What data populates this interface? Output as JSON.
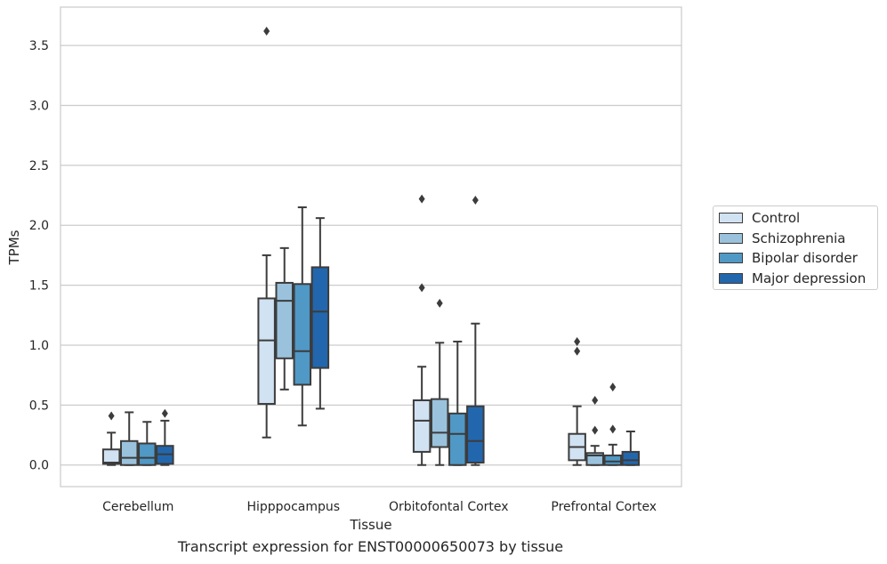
{
  "chart_data": {
    "type": "box",
    "xlabel": "Tissue",
    "ylabel": "TPMs",
    "ylim": [
      -0.18,
      3.82
    ],
    "yticks": [
      "0.0",
      "0.5",
      "1.0",
      "1.5",
      "2.0",
      "2.5",
      "3.0",
      "3.5"
    ],
    "categories": [
      "Cerebellum",
      "Hipppocampus",
      "Orbitofontal Cortex",
      "Prefrontal Cortex"
    ],
    "grid": "horizontal",
    "legend_position": "right",
    "series": [
      {
        "name": "Control",
        "color": "#d1e2f2",
        "boxes": [
          {
            "whislo": 0.0,
            "q1": 0.01,
            "med": 0.02,
            "q3": 0.13,
            "whishi": 0.27,
            "fliers": [
              0.41
            ]
          },
          {
            "whislo": 0.23,
            "q1": 0.51,
            "med": 1.04,
            "q3": 1.39,
            "whishi": 1.75,
            "fliers": [
              3.62
            ]
          },
          {
            "whislo": 0.0,
            "q1": 0.11,
            "med": 0.37,
            "q3": 0.54,
            "whishi": 0.82,
            "fliers": [
              1.48,
              2.22
            ]
          },
          {
            "whislo": 0.0,
            "q1": 0.04,
            "med": 0.15,
            "q3": 0.26,
            "whishi": 0.49,
            "fliers": [
              0.95,
              1.03
            ]
          }
        ]
      },
      {
        "name": "Schizophrenia",
        "color": "#9ac2dc",
        "boxes": [
          {
            "whislo": 0.0,
            "q1": 0.0,
            "med": 0.06,
            "q3": 0.2,
            "whishi": 0.44,
            "fliers": []
          },
          {
            "whislo": 0.63,
            "q1": 0.89,
            "med": 1.37,
            "q3": 1.52,
            "whishi": 1.81,
            "fliers": []
          },
          {
            "whislo": 0.0,
            "q1": 0.15,
            "med": 0.27,
            "q3": 0.55,
            "whishi": 1.02,
            "fliers": [
              1.35
            ]
          },
          {
            "whislo": 0.0,
            "q1": 0.0,
            "med": 0.08,
            "q3": 0.1,
            "whishi": 0.16,
            "fliers": [
              0.29,
              0.54
            ]
          }
        ]
      },
      {
        "name": "Bipolar disorder",
        "color": "#5098c6",
        "boxes": [
          {
            "whislo": 0.0,
            "q1": 0.0,
            "med": 0.06,
            "q3": 0.18,
            "whishi": 0.36,
            "fliers": []
          },
          {
            "whislo": 0.33,
            "q1": 0.67,
            "med": 0.95,
            "q3": 1.51,
            "whishi": 2.15,
            "fliers": []
          },
          {
            "whislo": 0.0,
            "q1": 0.0,
            "med": 0.26,
            "q3": 0.43,
            "whishi": 1.03,
            "fliers": []
          },
          {
            "whislo": 0.0,
            "q1": 0.0,
            "med": 0.03,
            "q3": 0.08,
            "whishi": 0.17,
            "fliers": [
              0.3,
              0.65
            ]
          }
        ]
      },
      {
        "name": "Major depression",
        "color": "#2267ad",
        "boxes": [
          {
            "whislo": 0.0,
            "q1": 0.01,
            "med": 0.09,
            "q3": 0.16,
            "whishi": 0.37,
            "fliers": [
              0.43
            ]
          },
          {
            "whislo": 0.47,
            "q1": 0.81,
            "med": 1.28,
            "q3": 1.65,
            "whishi": 2.06,
            "fliers": []
          },
          {
            "whislo": 0.0,
            "q1": 0.02,
            "med": 0.2,
            "q3": 0.49,
            "whishi": 1.18,
            "fliers": [
              2.21
            ]
          },
          {
            "whislo": 0.0,
            "q1": 0.0,
            "med": 0.04,
            "q3": 0.11,
            "whishi": 0.28,
            "fliers": []
          }
        ]
      }
    ]
  },
  "caption": "Transcript expression for ENST00000650073 by tissue"
}
